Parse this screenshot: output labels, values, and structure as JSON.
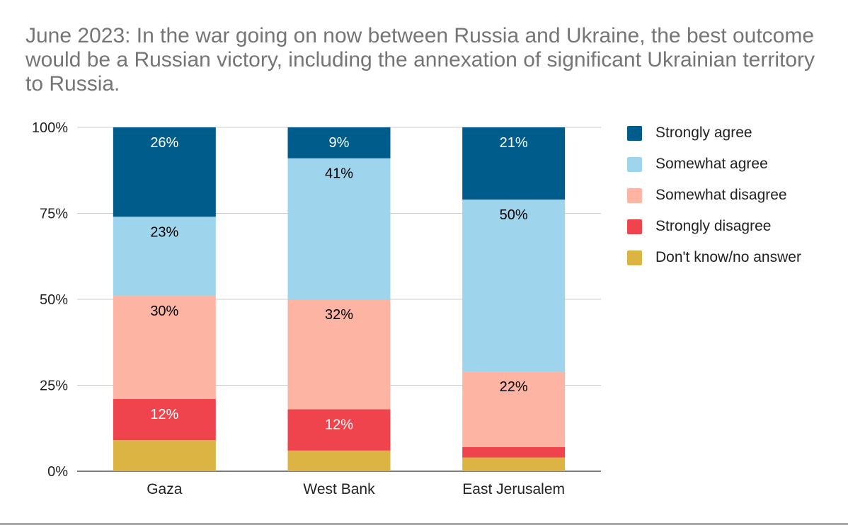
{
  "chart_data": {
    "type": "bar",
    "stacked": true,
    "title": "June 2023: In the war going on now between Russia and Ukraine, the best outcome would be a Russian victory, including the annexation of significant Ukrainian territory to Russia.",
    "xlabel": "",
    "ylabel": "",
    "ylim": [
      0,
      100
    ],
    "yticks": [
      "0%",
      "25%",
      "50%",
      "75%",
      "100%"
    ],
    "grid": true,
    "legend_position": "right",
    "categories": [
      "Gaza",
      "West Bank",
      "East Jerusalem"
    ],
    "series": [
      {
        "name": "Don't know/no answer",
        "color": "#dbb444",
        "values": [
          9,
          6,
          4
        ],
        "labels": [
          "",
          "",
          ""
        ],
        "label_color": "#000000"
      },
      {
        "name": "Strongly disagree",
        "color": "#ef444d",
        "values": [
          12,
          12,
          3
        ],
        "labels": [
          "12%",
          "12%",
          ""
        ],
        "label_color": "#ffffff"
      },
      {
        "name": "Somewhat disagree",
        "color": "#fdb4a3",
        "values": [
          30,
          32,
          22
        ],
        "labels": [
          "30%",
          "32%",
          "22%"
        ],
        "label_color": "#000000"
      },
      {
        "name": "Somewhat agree",
        "color": "#9ed4ec",
        "values": [
          23,
          41,
          50
        ],
        "labels": [
          "23%",
          "41%",
          "50%"
        ],
        "label_color": "#000000"
      },
      {
        "name": "Strongly agree",
        "color": "#005d8b",
        "values": [
          26,
          9,
          21
        ],
        "labels": [
          "26%",
          "9%",
          "21%"
        ],
        "label_color": "#ffffff"
      }
    ],
    "legend_order": [
      "Strongly agree",
      "Somewhat agree",
      "Somewhat disagree",
      "Strongly disagree",
      "Don't know/no answer"
    ]
  }
}
